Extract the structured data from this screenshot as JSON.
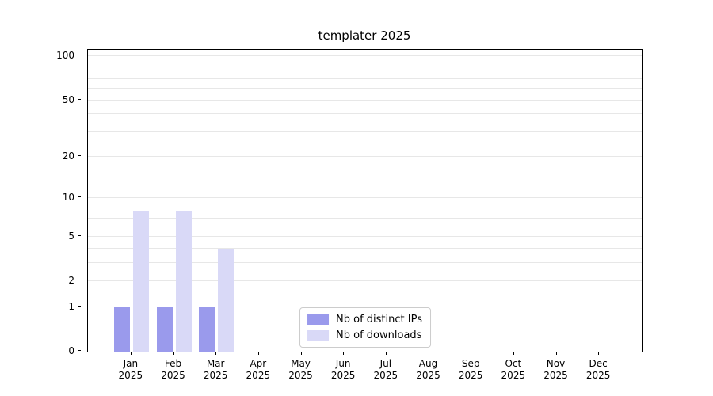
{
  "chart_data": {
    "type": "bar",
    "title": "templater 2025",
    "categories": [
      "Jan\n2025",
      "Feb\n2025",
      "Mar\n2025",
      "Apr\n2025",
      "May\n2025",
      "Jun\n2025",
      "Jul\n2025",
      "Aug\n2025",
      "Sep\n2025",
      "Oct\n2025",
      "Nov\n2025",
      "Dec\n2025"
    ],
    "series": [
      {
        "name": "Nb of distinct IPs",
        "color": "#9a9aec",
        "values": [
          1,
          1,
          1,
          0,
          0,
          0,
          0,
          0,
          0,
          0,
          0,
          0
        ]
      },
      {
        "name": "Nb of downloads",
        "color": "#d9d9f7",
        "values": [
          8,
          8,
          4,
          0,
          0,
          0,
          0,
          0,
          0,
          0,
          0,
          0
        ]
      }
    ],
    "xlabel": "",
    "ylabel": "",
    "yticks": [
      0,
      1,
      2,
      5,
      10,
      20,
      50,
      100
    ],
    "ylim": [
      0,
      111
    ],
    "y_scale": "log1p",
    "grid": true,
    "grid_color": "#e7e7e7",
    "frame_color": "#000000",
    "legend_position": "lower center",
    "background": "#ffffff"
  }
}
